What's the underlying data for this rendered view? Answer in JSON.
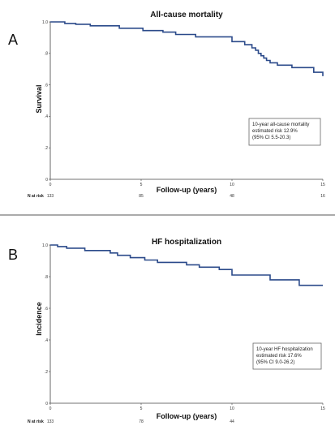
{
  "chart_data": [
    {
      "type": "line",
      "panel": "A",
      "title": "All-cause mortality",
      "xlabel": "Follow-up (years)",
      "ylabel": "Survival",
      "xlim": [
        0,
        15
      ],
      "ylim": [
        0,
        1.0
      ],
      "xticks": [
        "0",
        "5",
        "10",
        "15"
      ],
      "yticks": [
        "0",
        ".2",
        ".4",
        ".6",
        ".8",
        "1.0"
      ],
      "color": "#2b4a8a",
      "step_x": [
        0,
        0.8,
        1.4,
        2.2,
        3.8,
        5.1,
        6.2,
        6.9,
        8.0,
        10.0,
        10.7,
        11.1,
        11.3,
        11.45,
        11.6,
        11.75,
        11.9,
        12.1,
        12.5,
        13.3,
        14.5,
        15.0
      ],
      "step_y": [
        1.0,
        0.99,
        0.985,
        0.975,
        0.96,
        0.945,
        0.935,
        0.92,
        0.905,
        0.875,
        0.855,
        0.835,
        0.82,
        0.8,
        0.785,
        0.77,
        0.755,
        0.74,
        0.725,
        0.71,
        0.68,
        0.655
      ],
      "risk_label": "N at risk",
      "risk_values": [
        "133",
        "85",
        "48",
        "16"
      ],
      "annotation": [
        "10-year all-cause mortality",
        "estimated risk 12.9%",
        "(95% CI 5.5-20.3)"
      ]
    },
    {
      "type": "line",
      "panel": "B",
      "title": "HF hospitalization",
      "xlabel": "Follow-up (years)",
      "ylabel": "Incidence",
      "xlim": [
        0,
        15
      ],
      "ylim": [
        0,
        1.0
      ],
      "xticks": [
        "0",
        "5",
        "10",
        "15"
      ],
      "yticks": [
        "0",
        ".2",
        ".4",
        ".6",
        ".8",
        "1.0"
      ],
      "color": "#2b4a8a",
      "step_x": [
        0,
        0.4,
        0.9,
        1.9,
        3.3,
        3.7,
        4.4,
        5.2,
        5.9,
        7.5,
        8.2,
        9.3,
        10.0,
        12.1,
        13.7,
        15.0
      ],
      "step_y": [
        1.0,
        0.99,
        0.98,
        0.965,
        0.95,
        0.935,
        0.92,
        0.905,
        0.89,
        0.875,
        0.86,
        0.845,
        0.81,
        0.78,
        0.745,
        0.745
      ],
      "risk_label": "N at risk",
      "risk_values": [
        "133",
        "78",
        "44",
        ""
      ],
      "annotation": [
        "10-year HF hospitalization",
        "estimated risk 17.6%",
        "(95% CI 9.0-26.2)"
      ]
    }
  ]
}
